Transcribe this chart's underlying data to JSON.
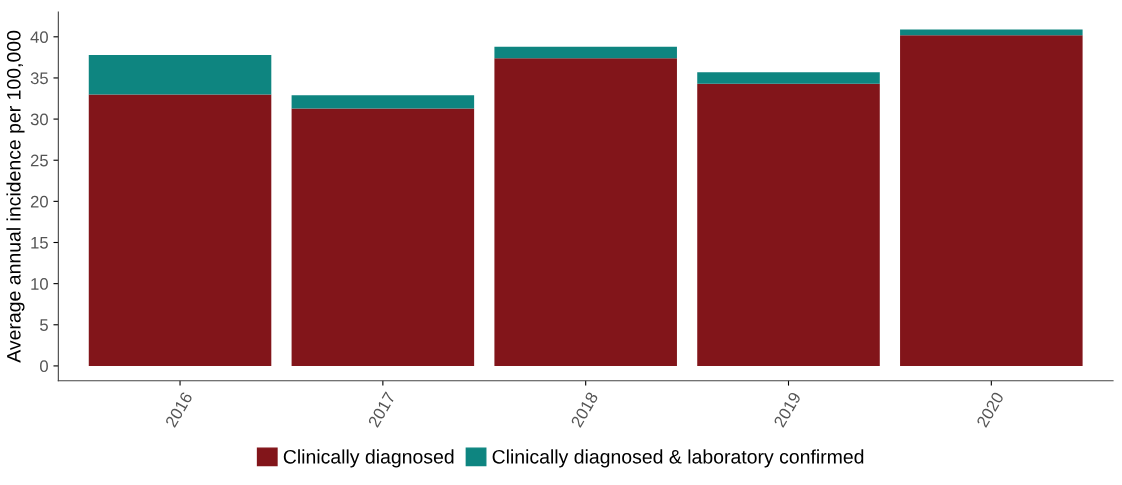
{
  "chart_data": {
    "type": "bar",
    "stacked": true,
    "ylabel": "Average annual incidence per 100,000",
    "categories": [
      "2016",
      "2017",
      "2018",
      "2019",
      "2020"
    ],
    "series": [
      {
        "name": "Clinically diagnosed",
        "color": "#82151a",
        "values": [
          33.0,
          31.3,
          37.4,
          34.3,
          40.2
        ]
      },
      {
        "name": "Clinically diagnosed & laboratory confirmed",
        "color": "#0e8580",
        "values": [
          4.8,
          1.6,
          1.4,
          1.4,
          0.7
        ]
      }
    ],
    "ylim": [
      -1.8,
      43
    ],
    "yticks": [
      0,
      5,
      10,
      15,
      20,
      25,
      30,
      35,
      40
    ],
    "grid": false,
    "legend": "bottom"
  }
}
